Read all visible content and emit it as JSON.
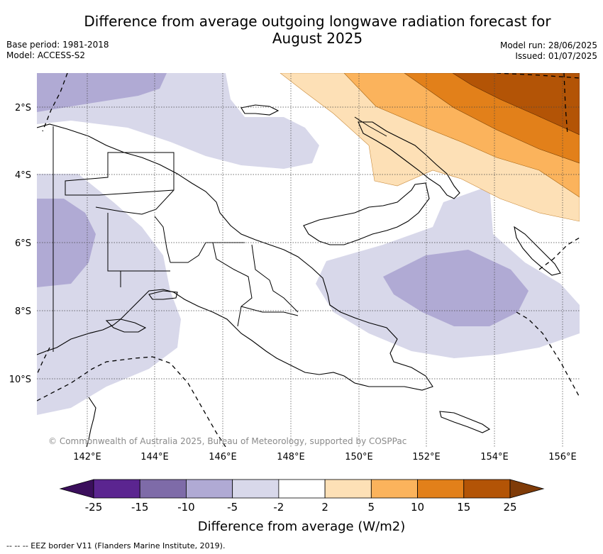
{
  "title": "Difference from average outgoing longwave radiation forecast for August 2025",
  "title_line1": "Difference from average outgoing longwave radiation forecast for",
  "title_line2": "August 2025",
  "base_period": "Base period: 1981-2018",
  "model": "Model: ACCESS-S2",
  "model_run": "Model run: 28/06/2025",
  "issued": "Issued: 01/07/2025",
  "copyright": "© Commonwealth of Australia 2025, Bureau of Meteorology, supported by COSPPac",
  "lat_labels": [
    "2°S",
    "4°S",
    "6°S",
    "8°S",
    "10°S"
  ],
  "lon_labels": [
    "142°E",
    "144°E",
    "146°E",
    "148°E",
    "150°E",
    "152°E",
    "154°E",
    "156°E"
  ],
  "colorbar": {
    "title": "Difference from average (W/m2)",
    "ticks": [
      "-25",
      "-15",
      "-10",
      "-5",
      "-2",
      "2",
      "5",
      "10",
      "15",
      "25"
    ],
    "colors": [
      "#3b0f5c",
      "#5b2590",
      "#7e6ba8",
      "#b0aad4",
      "#d8d8ea",
      "#ffffff",
      "#fde0b6",
      "#fbb35c",
      "#e2801a",
      "#b35406",
      "#7f3b08"
    ]
  },
  "legend_note": "--  --  -- EEZ border V11 (Flanders Marine Institute, 2019)."
}
